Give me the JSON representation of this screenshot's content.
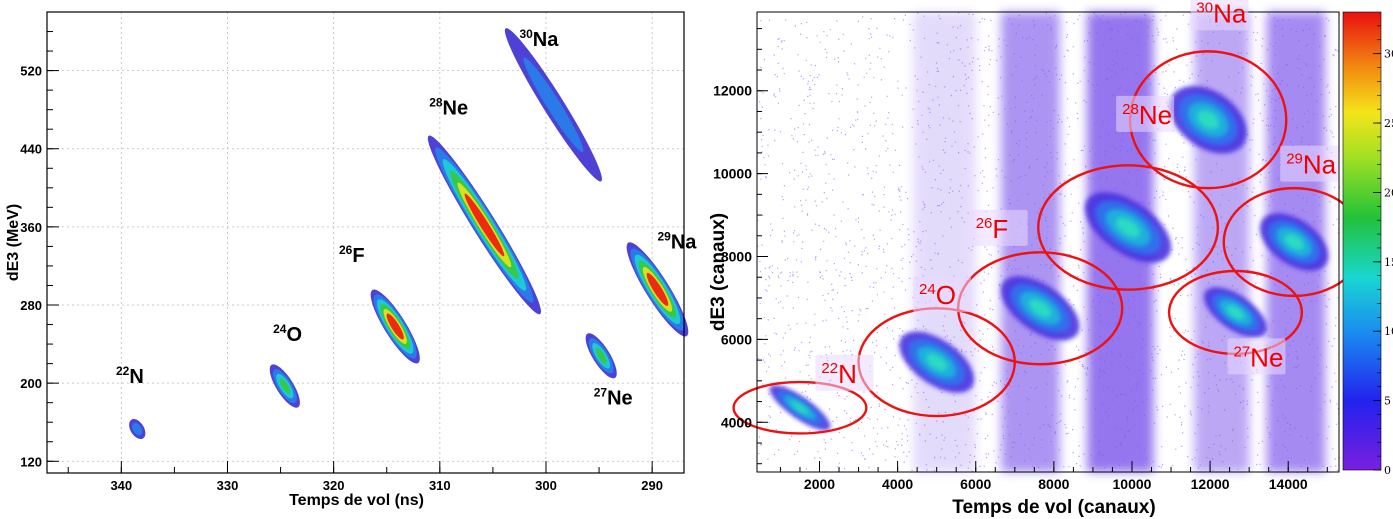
{
  "chart_data": [
    {
      "type": "scatter",
      "plot_style": "2D density histogram",
      "xlabel": "Temps de vol (ns)",
      "ylabel": "dE3 (MeV)",
      "xlim": [
        347,
        287
      ],
      "x_reversed": true,
      "ylim": [
        108,
        580
      ],
      "x_ticks": [
        340,
        330,
        320,
        310,
        300,
        290
      ],
      "y_ticks": [
        120,
        200,
        280,
        360,
        440,
        520
      ],
      "grid": true,
      "colormap": "rainbow",
      "islands": [
        {
          "mass": "22",
          "element": "N",
          "label_x": 340.5,
          "label_y": 200,
          "center_x": 338.5,
          "center_y": 153,
          "length": 22,
          "width": 6,
          "peak": 0.15
        },
        {
          "mass": "24",
          "element": "O",
          "label_x": 325.7,
          "label_y": 243,
          "center_x": 324.6,
          "center_y": 197,
          "length": 50,
          "width": 10,
          "peak": 0.6
        },
        {
          "mass": "26",
          "element": "F",
          "label_x": 319.5,
          "label_y": 324,
          "center_x": 314.2,
          "center_y": 258,
          "length": 86,
          "width": 15,
          "peak": 1.0
        },
        {
          "mass": "28",
          "element": "Ne",
          "label_x": 311,
          "label_y": 475,
          "center_x": 305.8,
          "center_y": 362,
          "length": 210,
          "width": 17,
          "peak": 1.0
        },
        {
          "mass": "30",
          "element": "Na",
          "label_x": 302.5,
          "label_y": 545,
          "center_x": 299.3,
          "center_y": 485,
          "length": 180,
          "width": 14,
          "peak": 0.35
        },
        {
          "mass": "27",
          "element": "Ne",
          "label_x": 295.5,
          "label_y": 178,
          "center_x": 294.8,
          "center_y": 228,
          "length": 52,
          "width": 10,
          "peak": 0.5
        },
        {
          "mass": "29",
          "element": "Na",
          "label_x": 289.5,
          "label_y": 338,
          "center_x": 289.5,
          "center_y": 296,
          "length": 110,
          "width": 17,
          "peak": 1.0
        }
      ]
    },
    {
      "type": "scatter",
      "plot_style": "2D density histogram",
      "xlabel": "Temps de vol (canaux)",
      "ylabel": "dE3 (canaux)",
      "xlim": [
        400,
        15300
      ],
      "ylim": [
        2800,
        13900
      ],
      "x_ticks": [
        2000,
        4000,
        6000,
        8000,
        10000,
        12000,
        14000
      ],
      "y_ticks": [
        4000,
        6000,
        8000,
        10000,
        12000
      ],
      "grid": false,
      "colorbar": {
        "min": 0,
        "max": 33,
        "ticks": [
          0,
          5,
          10,
          15,
          20,
          25,
          30
        ]
      },
      "islands": [
        {
          "mass": "22",
          "element": "N",
          "label_x": 2100,
          "label_y": 4950,
          "center_x": 1500,
          "center_y": 4350,
          "rx": 1700,
          "ry": 620
        },
        {
          "mass": "24",
          "element": "O",
          "label_x": 4600,
          "label_y": 6850,
          "center_x": 5000,
          "center_y": 5450,
          "rx": 2000,
          "ry": 1300
        },
        {
          "mass": "26",
          "element": "F",
          "label_x": 6050,
          "label_y": 8450,
          "center_x": 7650,
          "center_y": 6750,
          "rx": 2100,
          "ry": 1350
        },
        {
          "mass": "28",
          "element": "Ne",
          "label_x": 9800,
          "label_y": 11200,
          "center_x": 9900,
          "center_y": 8700,
          "rx": 2300,
          "ry": 1500
        },
        {
          "mass": "30",
          "element": "Na",
          "label_x": 11700,
          "label_y": 13650,
          "center_x": 11950,
          "center_y": 11300,
          "rx": 2000,
          "ry": 1650
        },
        {
          "mass": "27",
          "element": "Ne",
          "label_x": 12650,
          "label_y": 5350,
          "center_x": 12650,
          "center_y": 6650,
          "rx": 1700,
          "ry": 1000
        },
        {
          "mass": "29",
          "element": "Na",
          "label_x": 14000,
          "label_y": 10000,
          "center_x": 14150,
          "center_y": 8350,
          "rx": 1800,
          "ry": 1300
        }
      ]
    }
  ]
}
